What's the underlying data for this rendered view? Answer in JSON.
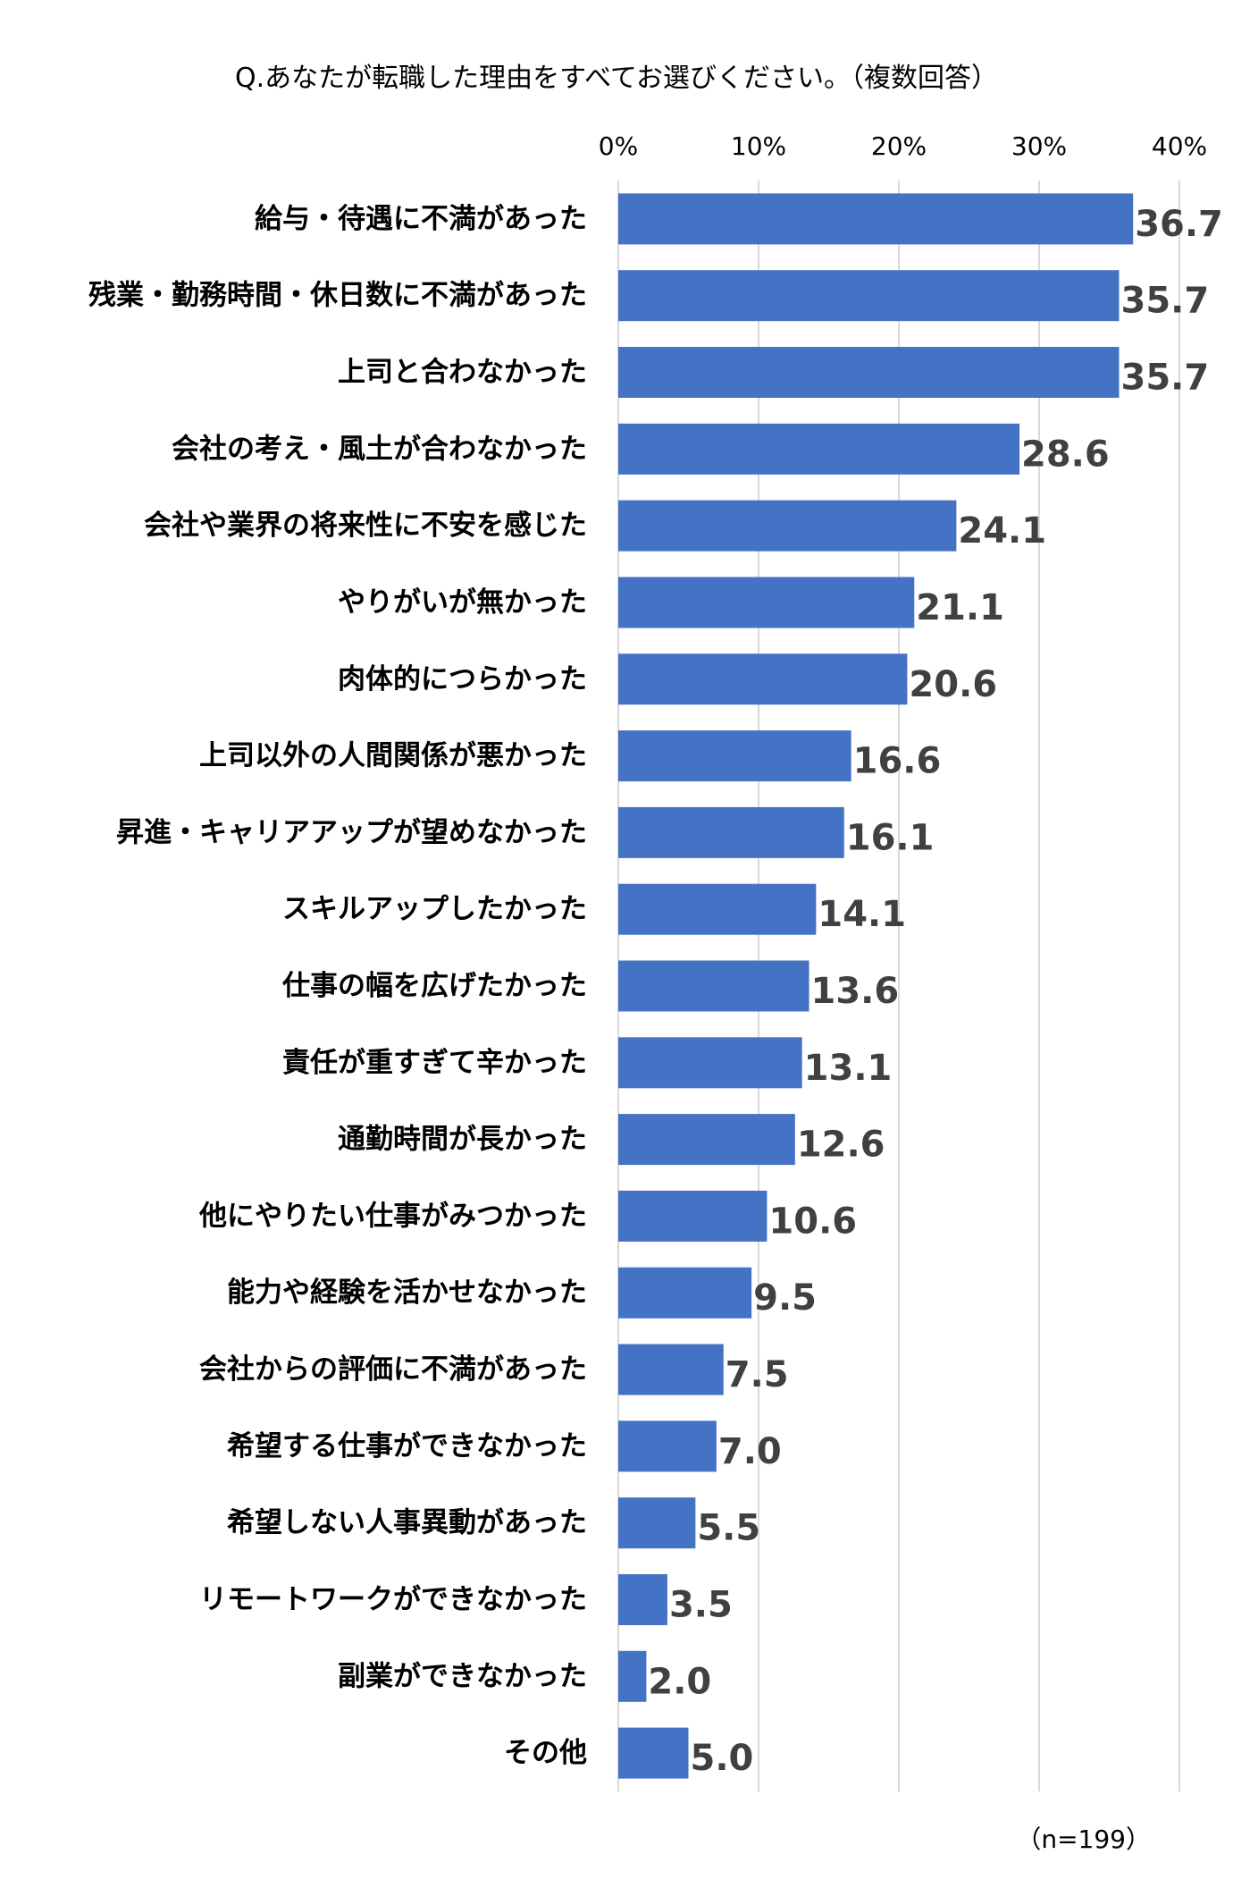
{
  "chart_data": {
    "type": "bar",
    "orientation": "horizontal",
    "title": "Q.あなたが転職した理由をすべてお選びください。（複数回答）",
    "note": "（n=199）",
    "xlim": [
      0,
      40
    ],
    "x_ticks": [
      "0%",
      "10%",
      "20%",
      "30%",
      "40%"
    ],
    "grid": true,
    "bar_color": "#4472C4",
    "categories": [
      "給与・待遇に不満があった",
      "残業・勤務時間・休日数に不満があった",
      "上司と合わなかった",
      "会社の考え・風土が合わなかった",
      "会社や業界の将来性に不安を感じた",
      "やりがいが無かった",
      "肉体的につらかった",
      "上司以外の人間関係が悪かった",
      "昇進・キャリアアップが望めなかった",
      "スキルアップしたかった",
      "仕事の幅を広げたかった",
      "責任が重すぎて辛かった",
      "通勤時間が長かった",
      "他にやりたい仕事がみつかった",
      "能力や経験を活かせなかった",
      "会社からの評価に不満があった",
      "希望する仕事ができなかった",
      "希望しない人事異動があった",
      "リモートワークができなかった",
      "副業ができなかった",
      "その他"
    ],
    "values": [
      36.7,
      35.7,
      35.7,
      28.6,
      24.1,
      21.1,
      20.6,
      16.6,
      16.1,
      14.1,
      13.6,
      13.1,
      12.6,
      10.6,
      9.5,
      7.5,
      7.0,
      5.5,
      3.5,
      2.0,
      5.0
    ],
    "value_labels": [
      "36.7",
      "35.7",
      "35.7",
      "28.6",
      "24.1",
      "21.1",
      "20.6",
      "16.6",
      "16.1",
      "14.1",
      "13.6",
      "13.1",
      "12.6",
      "10.6",
      "9.5",
      "7.5",
      "7.0",
      "5.5",
      "3.5",
      "2.0",
      "5.0"
    ]
  }
}
